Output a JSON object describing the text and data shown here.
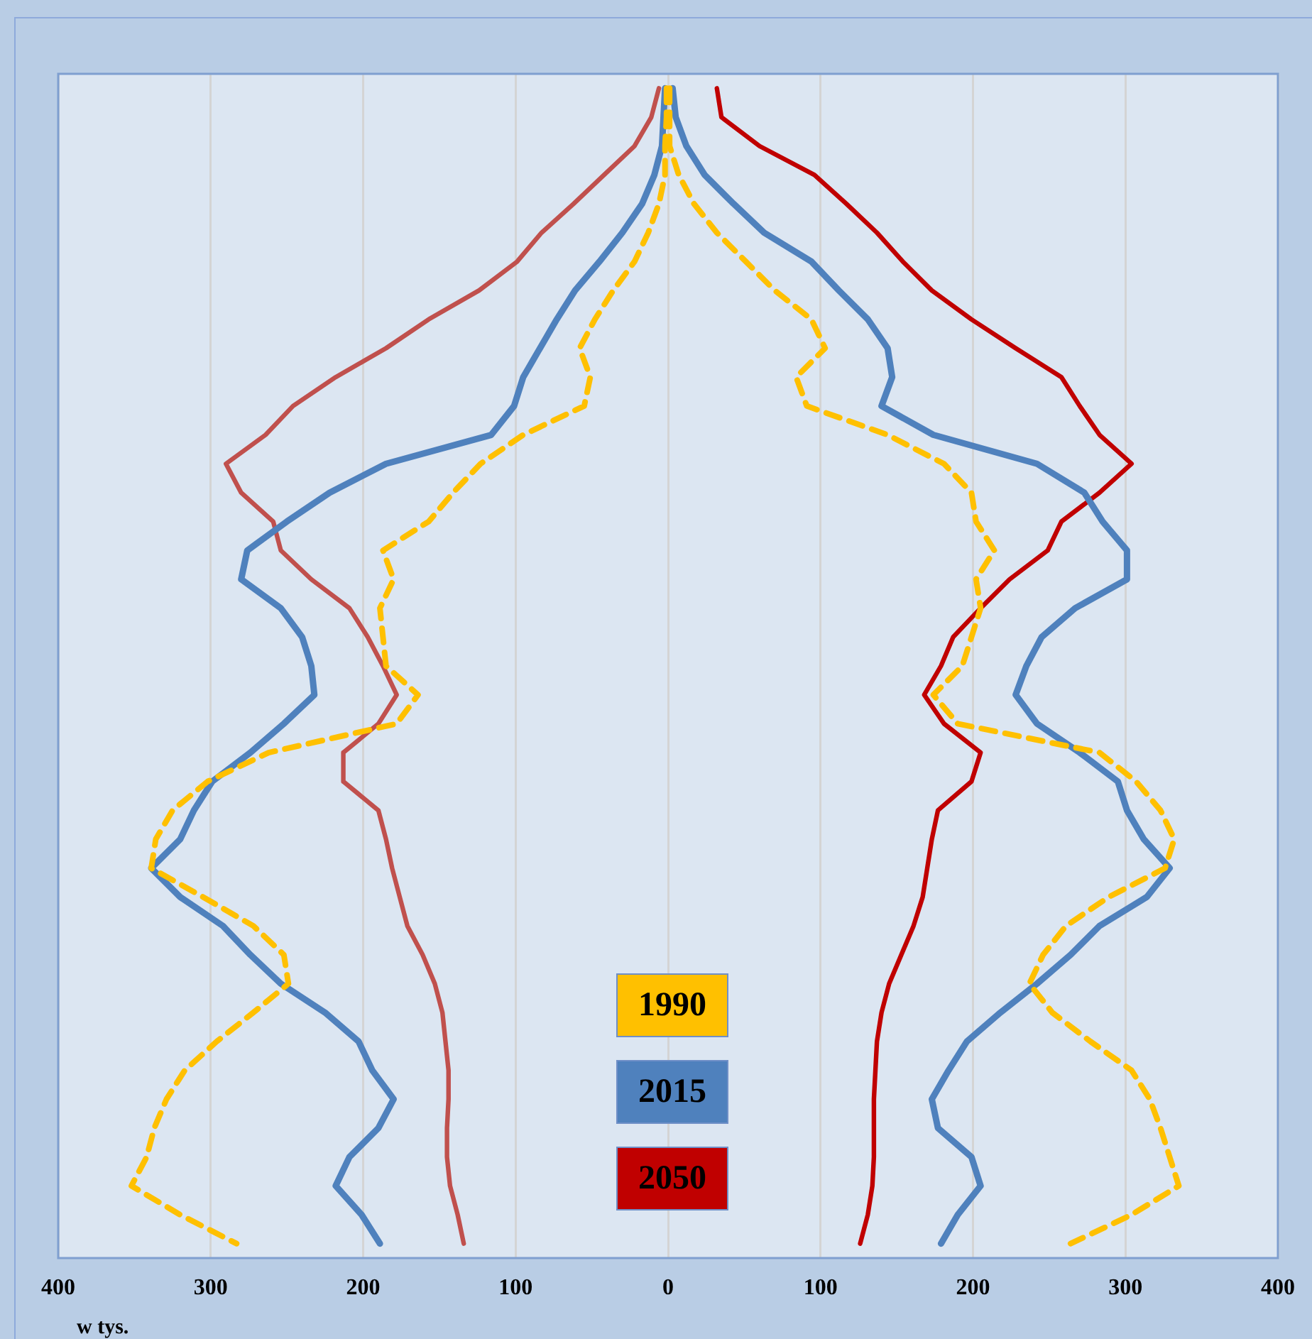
{
  "chart_data": {
    "type": "line",
    "orientation": "horizontal",
    "xlabel": "w tys.",
    "categories": [
      null,
      null,
      null,
      null,
      null,
      null,
      null,
      null,
      null,
      null,
      null,
      null,
      null,
      null,
      null,
      null,
      null,
      null,
      null,
      null,
      null,
      null,
      null,
      null,
      null,
      null,
      null,
      null,
      null,
      null,
      null,
      null,
      null,
      null,
      null,
      null,
      null,
      null,
      null,
      null,
      null
    ],
    "xlim": [
      -400,
      400
    ],
    "xticks": [
      {
        "value": -400,
        "label": "400"
      },
      {
        "value": -300,
        "label": "300"
      },
      {
        "value": -200,
        "label": "200"
      },
      {
        "value": -100,
        "label": "100"
      },
      0,
      100,
      200,
      300,
      400
    ],
    "grid": "x",
    "legend": "bottom",
    "marker": "none",
    "series": [
      {
        "color": "#ffc000",
        "line_style": "dashed",
        "values": [
          -1,
          -1,
          -2,
          -2,
          -6,
          -13,
          -22,
          -36,
          -48,
          -58,
          -51,
          -55,
          -95,
          -123,
          -141,
          -157,
          -187,
          -180,
          -189,
          -187,
          -185,
          -164,
          -178,
          -262,
          -302,
          -325,
          -336,
          -339,
          -305,
          -272,
          -252,
          -249,
          -272,
          -296,
          -317,
          -329,
          -337,
          -342,
          -352,
          -320,
          -283
        ]
      },
      {
        "name": "1990",
        "color": "#ffc000",
        "line_style": "dashed",
        "values": [
          1,
          1,
          1,
          7,
          17,
          32,
          51,
          70,
          94,
          103,
          84,
          91,
          144,
          181,
          199,
          202,
          214,
          202,
          205,
          199,
          193,
          174,
          190,
          283,
          307,
          323,
          332,
          326,
          289,
          261,
          246,
          237,
          252,
          277,
          304,
          316,
          323,
          329,
          335,
          304,
          264
        ]
      },
      {
        "color": "#4f81bd",
        "line_style": "solid",
        "values": [
          -2,
          -3,
          -4,
          -9,
          -17,
          -30,
          -45,
          -61,
          -73,
          -84,
          -95,
          -101,
          -116,
          -185,
          -222,
          -250,
          -276,
          -280,
          -254,
          -240,
          -234,
          -232,
          -252,
          -274,
          -299,
          -311,
          -320,
          -339,
          -320,
          -292,
          -274,
          -254,
          -225,
          -203,
          -194,
          -180,
          -190,
          -209,
          -218,
          -201,
          -189
        ]
      },
      {
        "name": "2015",
        "color": "#4f81bd",
        "line_style": "solid",
        "values": [
          3,
          5,
          12,
          24,
          43,
          63,
          94,
          112,
          131,
          144,
          147,
          140,
          174,
          242,
          273,
          285,
          301,
          301,
          267,
          245,
          235,
          228,
          242,
          270,
          295,
          301,
          312,
          329,
          314,
          283,
          264,
          242,
          218,
          196,
          184,
          173,
          177,
          199,
          205,
          190,
          179
        ]
      },
      {
        "color": "#c0504d",
        "line_style": "solid",
        "values": [
          -6,
          -11,
          -22,
          -42,
          -62,
          -83,
          -99,
          -124,
          -157,
          -185,
          -218,
          -246,
          -264,
          -290,
          -280,
          -259,
          -254,
          -234,
          -209,
          -197,
          -187,
          -178,
          -190,
          -213,
          -213,
          -190,
          -185,
          -181,
          -176,
          -171,
          -161,
          -153,
          -148,
          -146,
          -144,
          -144,
          -145,
          -145,
          -143,
          -138,
          -134
        ]
      },
      {
        "name": "2050",
        "color": "#c00000",
        "line_style": "solid",
        "values": [
          32,
          35,
          60,
          96,
          117,
          137,
          154,
          173,
          199,
          228,
          258,
          270,
          283,
          304,
          283,
          258,
          249,
          224,
          205,
          187,
          179,
          168,
          181,
          205,
          199,
          177,
          173,
          170,
          167,
          161,
          153,
          145,
          140,
          137,
          136,
          135,
          135,
          135,
          134,
          131,
          126
        ]
      }
    ]
  }
}
